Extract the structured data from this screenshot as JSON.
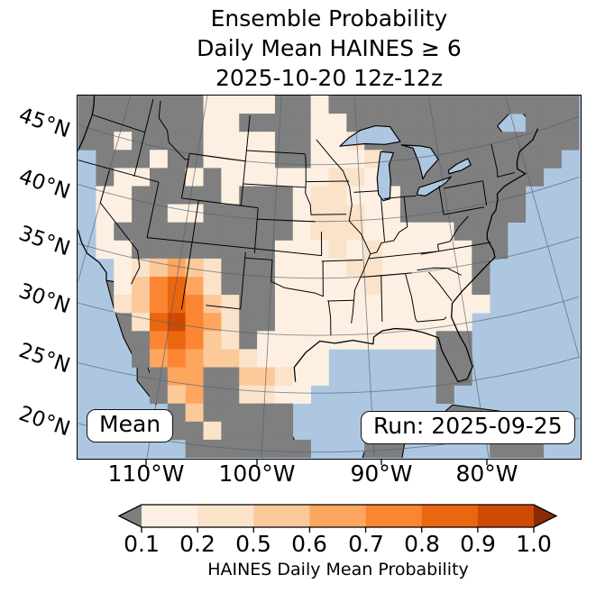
{
  "title": {
    "line1": "Ensemble Probability",
    "line2": "Daily Mean HAINES ≥ 6",
    "line3": "2025-10-20 12z-12z"
  },
  "map": {
    "overlay_left": "Mean",
    "overlay_right": "Run: 2025-09-25",
    "lat_labels": [
      "45°N",
      "40°N",
      "35°N",
      "30°N",
      "25°N",
      "20°N"
    ],
    "lon_labels": [
      "110°W",
      "100°W",
      "90°W",
      "80°W"
    ]
  },
  "colorbar": {
    "label": "HAINES Daily Mean Probability",
    "ticks": [
      "0.1",
      "0.2",
      "0.5",
      "0.6",
      "0.7",
      "0.8",
      "0.9",
      "1.0"
    ],
    "segment_colors": [
      "#fdf0e2",
      "#fbe3c9",
      "#fcc99b",
      "#fda660",
      "#fb8532",
      "#ea660f",
      "#ce4a02"
    ],
    "under_color": "#7f7f7f",
    "over_color": "#8a2b04"
  },
  "colors": {
    "ocean": "#aec7e1",
    "mask_gray": "#7f7f7f",
    "border": "#000000",
    "graticule": "#50606e"
  },
  "chart_data": {
    "type": "heatmap",
    "title": "Ensemble Probability Daily Mean HAINES ≥ 6 2025-10-20 12z-12z",
    "statistic": "Mean",
    "run_date": "2025-09-25",
    "valid_period": "2025-10-20 12z-12z",
    "variable": "HAINES Daily Mean Probability",
    "levels": [
      0.1,
      0.2,
      0.5,
      0.6,
      0.7,
      0.8,
      0.9,
      1.0
    ],
    "lat_ticks": [
      45,
      40,
      35,
      30,
      25,
      20
    ],
    "lon_ticks": [
      -110,
      -100,
      -90,
      -80
    ],
    "legend": {
      ".": "ocean / outside data grid",
      "g": "masked / below 0.1 (gray)",
      "a": "0.1-0.2",
      "b": "0.2-0.5",
      "c": "0.5-0.6",
      "d": "0.6-0.7",
      "e": "0.7-0.8",
      "f": "0.8-0.9",
      "h": "0.9-1.0"
    },
    "cell_colors": {
      "g": "#7f7f7f",
      "a": "#fdf0e2",
      "b": "#fbe3c9",
      "c": "#fcc99b",
      "d": "#fda660",
      "e": "#fb8532",
      "f": "#ea660f",
      "h": "#ce4a02"
    },
    "grid_cols": 28,
    "grid_rows": 20,
    "grid": [
      "gggggggaaaaggagggggggggggggg",
      "gggggggaaggggaagggggggg..ggg",
      "ggaggggaaaaggaabgggggggggggg",
      ".gggaggaaaaggaaabgggggggggg.",
      ".gaaggagaaaaaabbaggggggggg..",
      ".aagggggagggabbaaaggggggg...",
      ".aaggaagggggabbbaaggggggg...",
      ".aggggggggggabbbaaaaaggg....",
      ".aaggggggggaaababaaaaagg....",
      "..abcdcbgggaaaabbaaaaag.....",
      "..acefdbgggaaaaabaaaaag.....",
      "..bcefecbggaaaaaaaaaaaa.....",
      "...bfhedbggaaaaaaaaaaa......",
      "...gefecbgaaaaaaaaaagg......",
      "...gdedccbaaaa......gg......",
      "....gddggccbaa......gg......",
      "....gcdggbbaa.......g.......",
      ".....gcggggg................",
      ".....ggbgggg.....g....gggg..",
      "......ggggggg...gg.....ggg.."
    ]
  }
}
